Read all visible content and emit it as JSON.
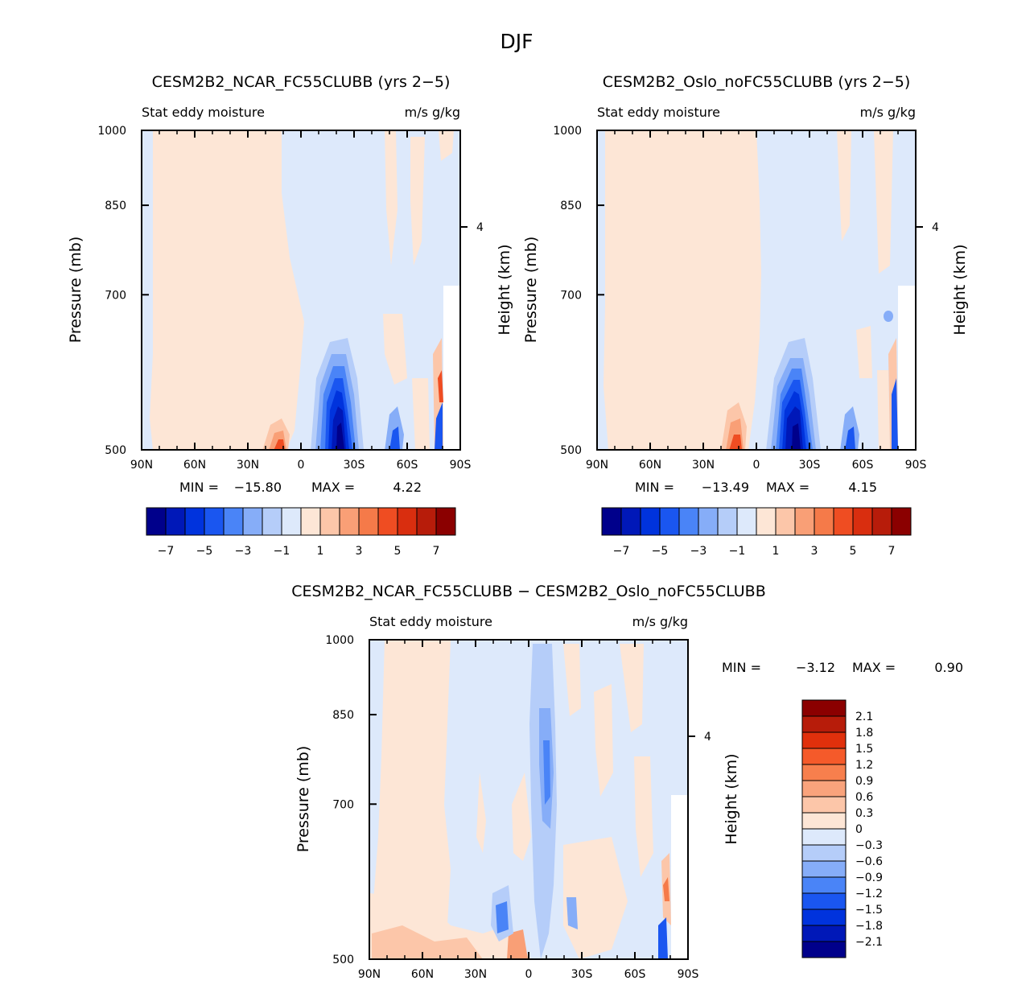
{
  "figure": {
    "title": "DJF"
  },
  "chart_data": [
    {
      "type": "heatmap",
      "id": "p1",
      "title": "CESM2B2_NCAR_FC55CLUBB (yrs 2−5)",
      "variable": "Stat eddy moisture",
      "units": "m/s g/kg",
      "ylabel": "Pressure (mb)",
      "ylabel_right": "Height (km)",
      "x_ticks": [
        "90N",
        "60N",
        "30N",
        "0",
        "30S",
        "60S",
        "90S"
      ],
      "y_ticks": [
        "500",
        "700",
        "850",
        "1000"
      ],
      "right_ticks": [
        "4"
      ],
      "xlim": [
        90,
        -90
      ],
      "ylim": [
        1000,
        500
      ],
      "min_label": "MIN =",
      "min_value": "−15.80",
      "max_label": "MAX =",
      "max_value": "4.22",
      "colorbar_labels": [
        "−7",
        "−5",
        "−3",
        "−1",
        "1",
        "3",
        "5",
        "7"
      ],
      "colorbar_colors": [
        "#00008b",
        "#0018b8",
        "#0033dd",
        "#1a56f0",
        "#4a84f7",
        "#86adf8",
        "#b5cdf9",
        "#dde9fb",
        "#fde6d6",
        "#fcc6a9",
        "#f99f76",
        "#f57a49",
        "#ef4d22",
        "#d92e0f",
        "#b71c0a",
        "#8b0000"
      ]
    },
    {
      "type": "heatmap",
      "id": "p2",
      "title": "CESM2B2_Oslo_noFC55CLUBB (yrs 2−5)",
      "variable": "Stat eddy moisture",
      "units": "m/s g/kg",
      "ylabel": "Pressure (mb)",
      "ylabel_right": "Height (km)",
      "x_ticks": [
        "90N",
        "60N",
        "30N",
        "0",
        "30S",
        "60S",
        "90S"
      ],
      "y_ticks": [
        "500",
        "700",
        "850",
        "1000"
      ],
      "right_ticks": [
        "4"
      ],
      "xlim": [
        90,
        -90
      ],
      "ylim": [
        1000,
        500
      ],
      "min_label": "MIN =",
      "min_value": "−13.49",
      "max_label": "MAX =",
      "max_value": "4.15",
      "colorbar_labels": [
        "−7",
        "−5",
        "−3",
        "−1",
        "1",
        "3",
        "5",
        "7"
      ],
      "colorbar_colors": [
        "#00008b",
        "#0018b8",
        "#0033dd",
        "#1a56f0",
        "#4a84f7",
        "#86adf8",
        "#b5cdf9",
        "#dde9fb",
        "#fde6d6",
        "#fcc6a9",
        "#f99f76",
        "#f57a49",
        "#ef4d22",
        "#d92e0f",
        "#b71c0a",
        "#8b0000"
      ]
    },
    {
      "type": "heatmap",
      "id": "p3",
      "title": "CESM2B2_NCAR_FC55CLUBB − CESM2B2_Oslo_noFC55CLUBB",
      "variable": "Stat eddy moisture",
      "units": "m/s g/kg",
      "ylabel": "Pressure (mb)",
      "ylabel_right": "Height (km)",
      "x_ticks": [
        "90N",
        "60N",
        "30N",
        "0",
        "30S",
        "60S",
        "90S"
      ],
      "y_ticks": [
        "500",
        "700",
        "850",
        "1000"
      ],
      "right_ticks": [
        "4"
      ],
      "xlim": [
        90,
        -90
      ],
      "ylim": [
        1000,
        500
      ],
      "min_label": "MIN =",
      "min_value": "−3.12",
      "max_label": "MAX =",
      "max_value": "0.90",
      "colorbar_labels": [
        "2.1",
        "1.8",
        "1.5",
        "1.2",
        "0.9",
        "0.6",
        "0.3",
        "0",
        "−0.3",
        "−0.6",
        "−0.9",
        "−1.2",
        "−1.5",
        "−1.8",
        "−2.1"
      ],
      "colorbar_colors": [
        "#8b0000",
        "#b71c0a",
        "#e0300c",
        "#f55a2a",
        "#f77f4d",
        "#f9a37c",
        "#fcc6a9",
        "#fde6d6",
        "#dde9fb",
        "#b5cdf9",
        "#86adf8",
        "#4a84f7",
        "#1a56f0",
        "#0033dd",
        "#0018b8",
        "#00008b"
      ]
    }
  ]
}
